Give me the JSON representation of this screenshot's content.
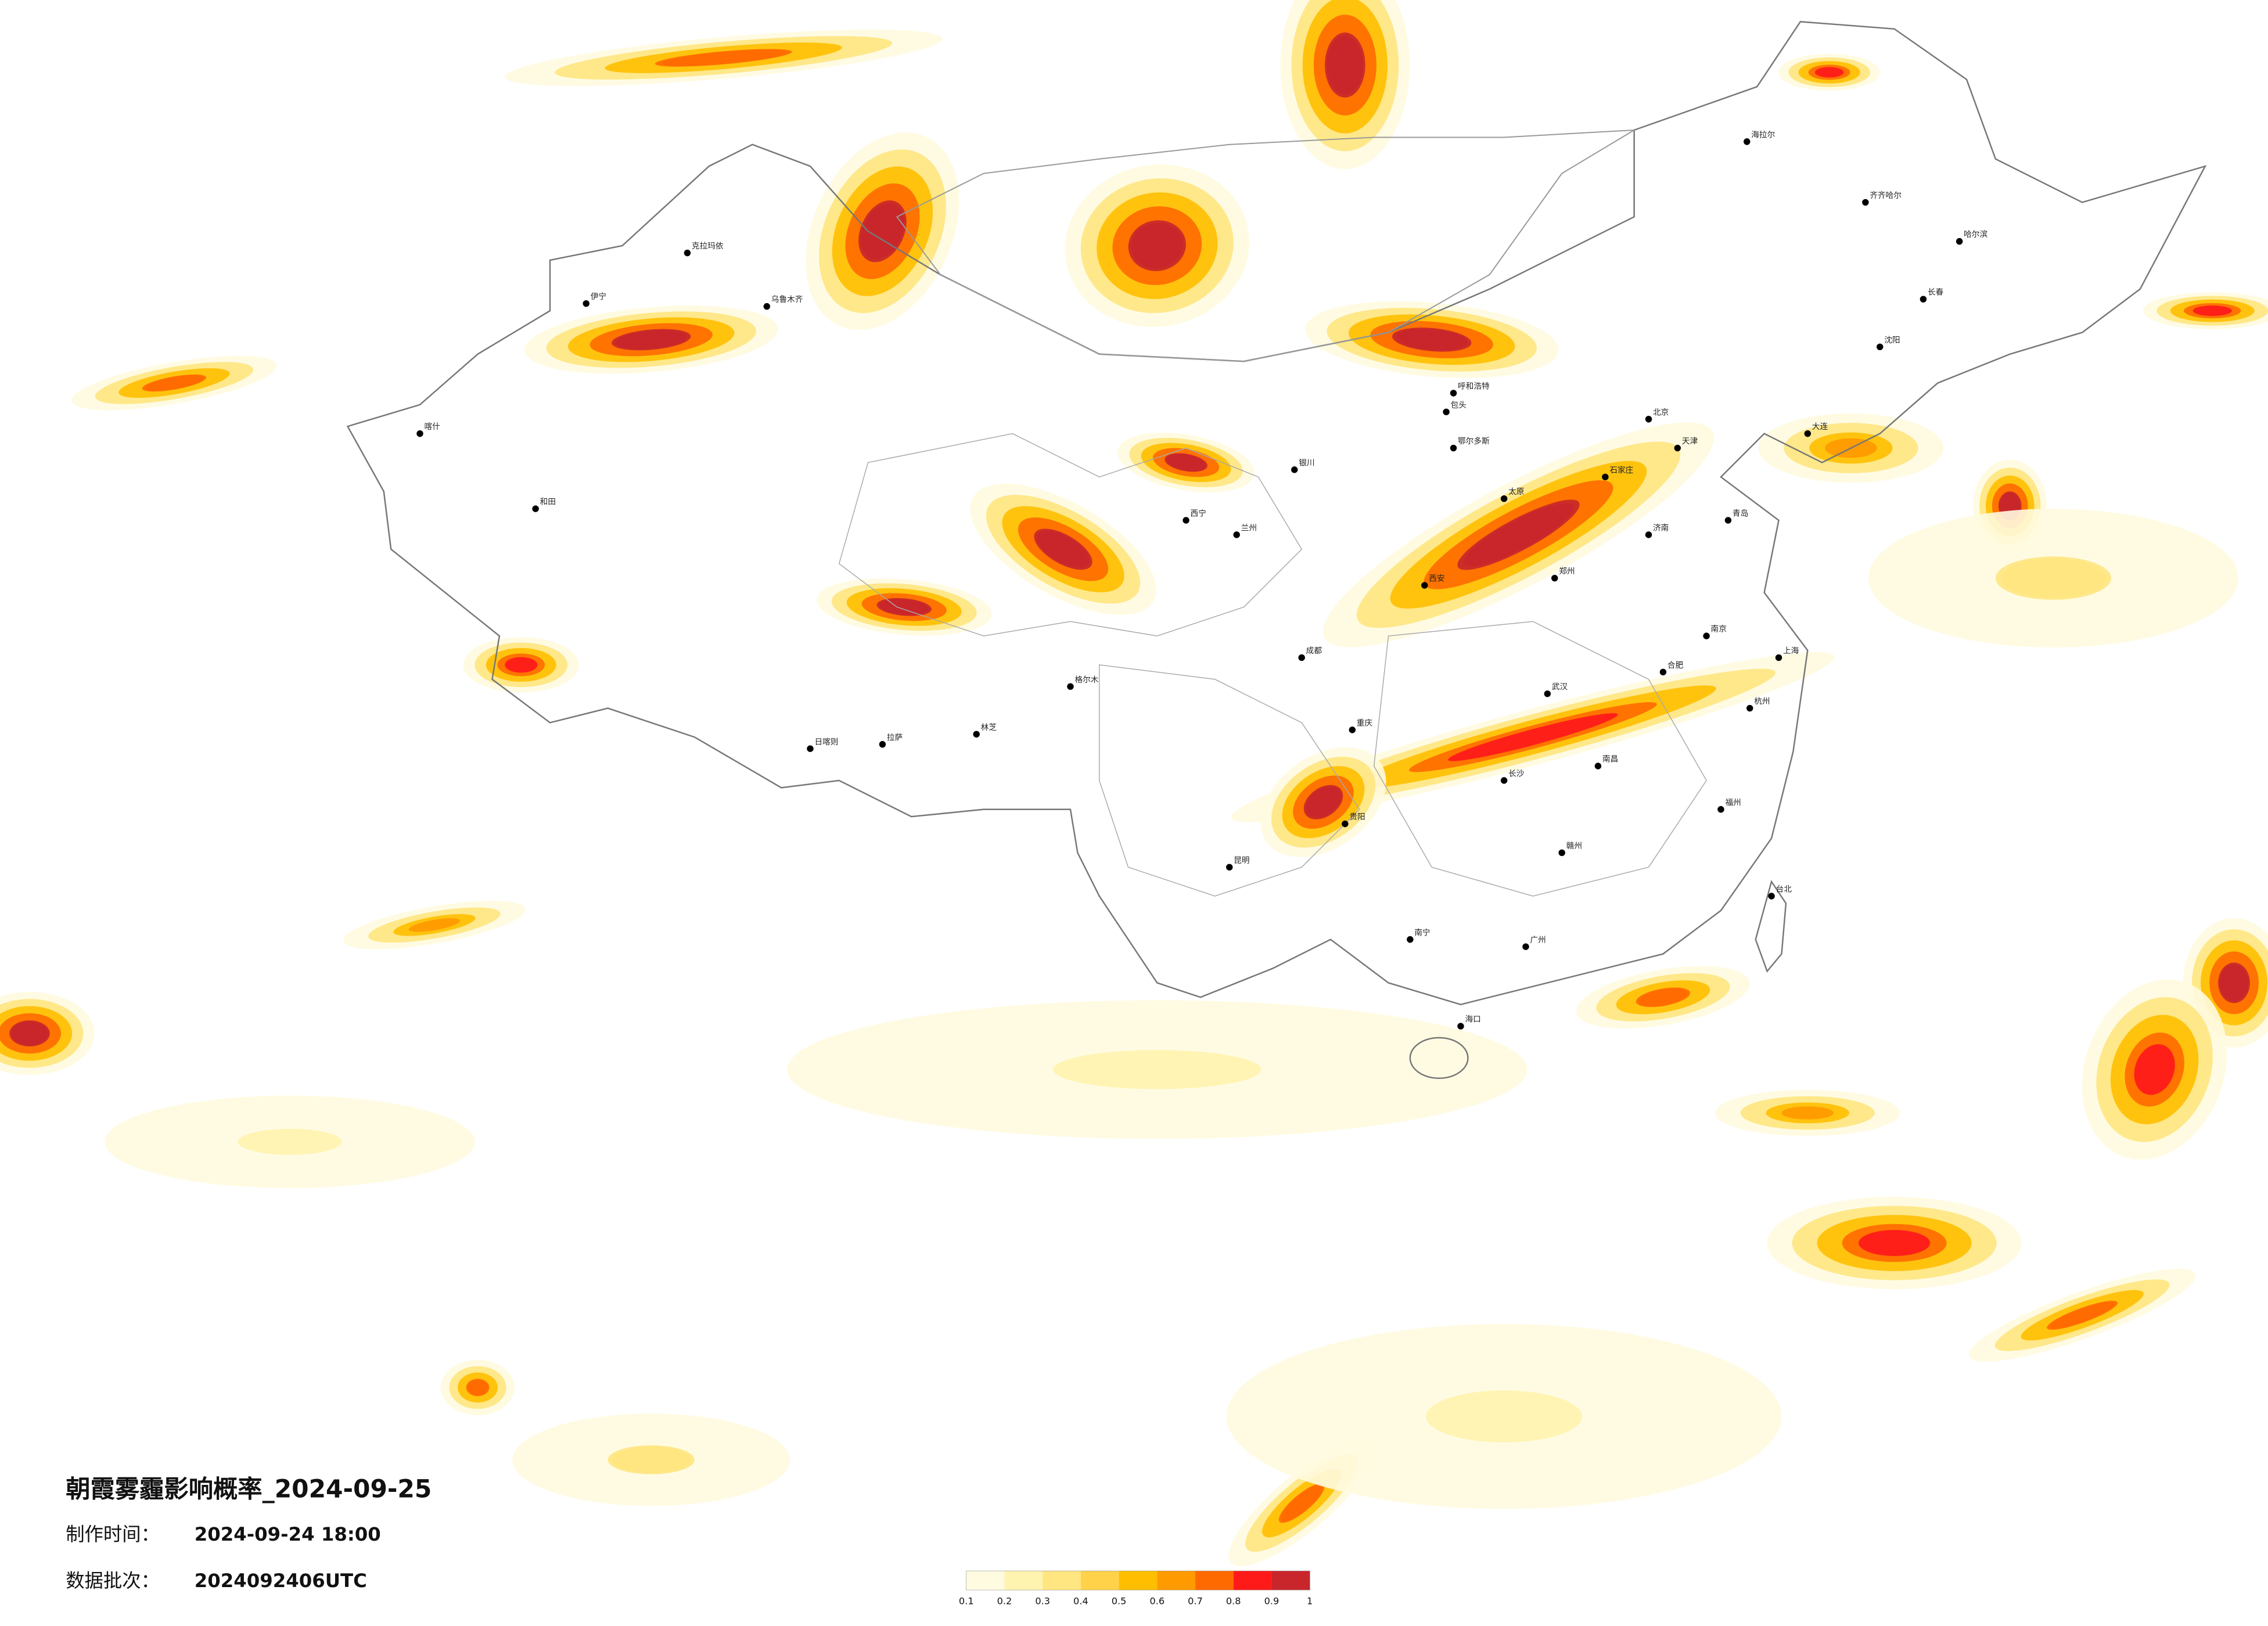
{
  "header": {
    "title": "朝霞雾霾影响概率_2024-09-25",
    "made_label": "制作时间：",
    "made_value": "2024-09-24 18:00",
    "batch_label": "数据批次：",
    "batch_value": "2024092406UTC"
  },
  "legend": {
    "colors": [
      "#fffbe0",
      "#fff3b0",
      "#ffe680",
      "#ffd24a",
      "#ffbf00",
      "#ff9a00",
      "#ff6a00",
      "#ff1a1a",
      "#c8262b"
    ],
    "ticks": [
      0.1,
      0.2,
      0.3,
      0.4,
      0.5,
      0.6,
      0.7,
      0.8,
      0.9,
      1
    ]
  },
  "cities": [
    "哈尔滨",
    "长春",
    "沈阳",
    "大连",
    "北京",
    "天津",
    "石家庄",
    "太原",
    "呼和浩特",
    "济南",
    "青岛",
    "郑州",
    "西安",
    "兰州",
    "西宁",
    "银川",
    "乌鲁木齐",
    "拉萨",
    "成都",
    "重庆",
    "武汉",
    "长沙",
    "南昌",
    "合肥",
    "南京",
    "上海",
    "杭州",
    "福州",
    "台北",
    "广州",
    "南宁",
    "海口",
    "贵阳",
    "昆明",
    "喀什",
    "和田",
    "伊宁",
    "克拉玛依",
    "齐齐哈尔",
    "海拉尔",
    "包头",
    "鄂尔多斯",
    "日喀则",
    "林芝",
    "格尔木",
    "赣州"
  ]
}
